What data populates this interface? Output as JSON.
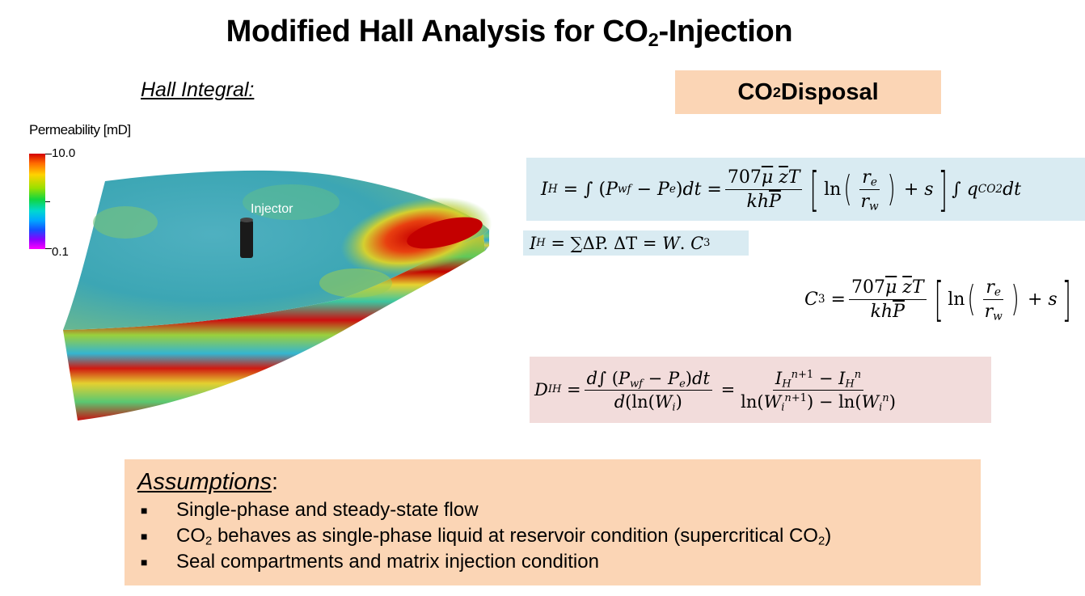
{
  "title": {
    "pre": "Modified Hall Analysis for CO",
    "sub": "2",
    "post": "-Injection"
  },
  "hall_heading": "Hall Integral:",
  "disposal": {
    "pre": "CO",
    "sub": "2",
    "post": " Disposal"
  },
  "legend": {
    "title": "Permeability [mD]",
    "max_label": "10.0",
    "min_label": "0.1"
  },
  "injector_label": "Injector",
  "assumptions": {
    "heading": "Assumptions",
    "heading_colon": ":",
    "items": [
      {
        "text": "Single-phase and steady-state flow"
      },
      {
        "pre": "CO",
        "sub": "2",
        "mid": " behaves as single-phase liquid at reservoir condition (supercritical CO",
        "sub2": "2",
        "post": ")"
      },
      {
        "text": "Seal compartments and matrix injection condition"
      }
    ]
  },
  "colors": {
    "disposal_bg": "#fbd5b5",
    "eq_blue_bg": "#d9ebf2",
    "eq_pink_bg": "#f2dcdb",
    "assumptions_bg": "#fbd5b5"
  }
}
